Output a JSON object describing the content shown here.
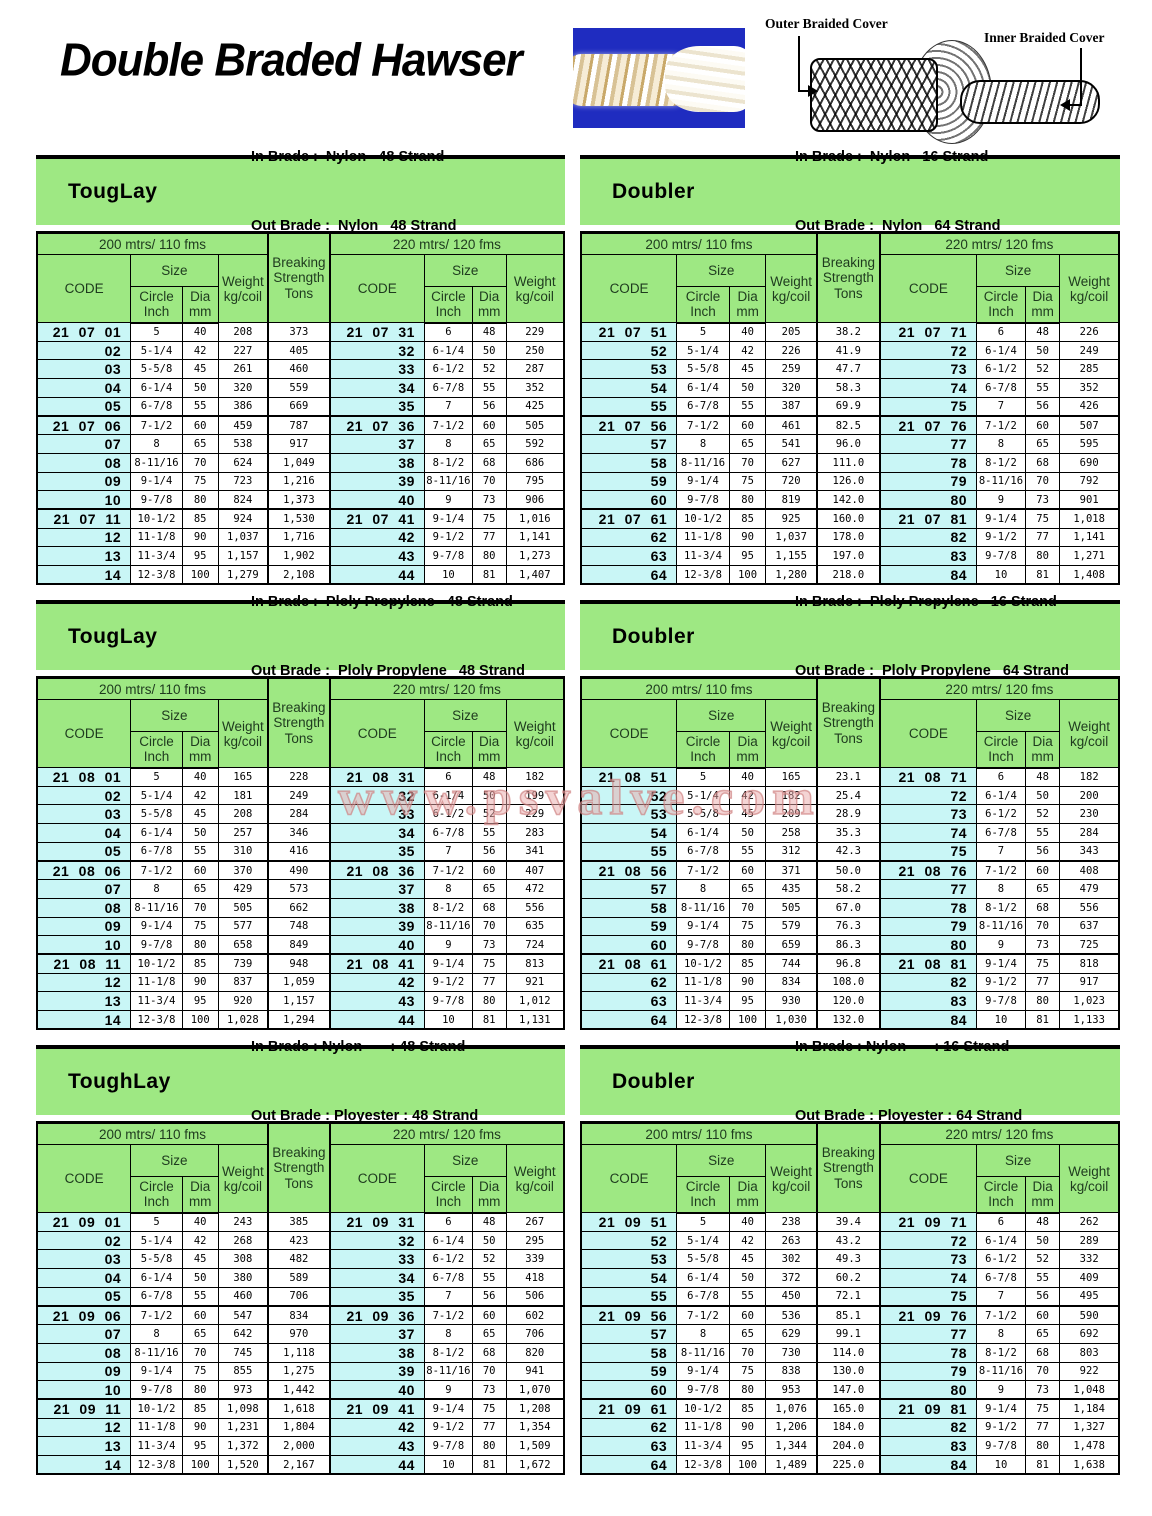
{
  "page": {
    "title": "Double Braded Hawser",
    "watermark": "www.psvalve.com"
  },
  "diagram": {
    "outer_label": "Outer Braided Cover",
    "inner_label": "Inner Braided Cover"
  },
  "colors": {
    "green": "#9ee883",
    "cyan": "#c9f6f6",
    "photo_blue": "#1f2cc0",
    "watermark_pink": "#e9aaaa"
  },
  "table_header": {
    "left_span": "200 mtrs/ 110 fms",
    "right_span": "220 mtrs/ 120 fms",
    "code": "CODE",
    "size": "Size",
    "circle": [
      "Circle",
      "Inch"
    ],
    "dia": [
      "Dia",
      "mm"
    ],
    "weight": [
      "Weight",
      "kg/coil"
    ],
    "breaking": [
      "Breaking",
      "Strength",
      "Tons"
    ]
  },
  "tables": [
    {
      "title": "TougLay",
      "in_line": "In Brade :  Nylon   48 Strand",
      "out_line": "Out Brade :  Nylon   48 Strand",
      "rows": [
        [
          "21 07 01",
          "5",
          "40",
          "208",
          "373",
          "21 07 31",
          "6",
          "48",
          "229"
        ],
        [
          "02",
          "5-1/4",
          "42",
          "227",
          "405",
          "32",
          "6-1/4",
          "50",
          "250"
        ],
        [
          "03",
          "5-5/8",
          "45",
          "261",
          "460",
          "33",
          "6-1/2",
          "52",
          "287"
        ],
        [
          "04",
          "6-1/4",
          "50",
          "320",
          "559",
          "34",
          "6-7/8",
          "55",
          "352"
        ],
        [
          "05",
          "6-7/8",
          "55",
          "386",
          "669",
          "35",
          "7",
          "56",
          "425"
        ],
        [
          "21 07 06",
          "7-1/2",
          "60",
          "459",
          "787",
          "21 07 36",
          "7-1/2",
          "60",
          "505"
        ],
        [
          "07",
          "8",
          "65",
          "538",
          "917",
          "37",
          "8",
          "65",
          "592"
        ],
        [
          "08",
          "8-11/16",
          "70",
          "624",
          "1,049",
          "38",
          "8-1/2",
          "68",
          "686"
        ],
        [
          "09",
          "9-1/4",
          "75",
          "723",
          "1,216",
          "39",
          "8-11/16",
          "70",
          "795"
        ],
        [
          "10",
          "9-7/8",
          "80",
          "824",
          "1,373",
          "40",
          "9",
          "73",
          "906"
        ],
        [
          "21 07 11",
          "10-1/2",
          "85",
          "924",
          "1,530",
          "21 07 41",
          "9-1/4",
          "75",
          "1,016"
        ],
        [
          "12",
          "11-1/8",
          "90",
          "1,037",
          "1,716",
          "42",
          "9-1/2",
          "77",
          "1,141"
        ],
        [
          "13",
          "11-3/4",
          "95",
          "1,157",
          "1,902",
          "43",
          "9-7/8",
          "80",
          "1,273"
        ],
        [
          "14",
          "12-3/8",
          "100",
          "1,279",
          "2,108",
          "44",
          "10",
          "81",
          "1,407"
        ]
      ]
    },
    {
      "title": "Doubler",
      "in_line": "In Brade :  Nylon   16 Strand",
      "out_line": "Out Brade :  Nylon   64 Strand",
      "rows": [
        [
          "21 07 51",
          "5",
          "40",
          "205",
          "38.2",
          "21 07 71",
          "6",
          "48",
          "226"
        ],
        [
          "52",
          "5-1/4",
          "42",
          "226",
          "41.9",
          "72",
          "6-1/4",
          "50",
          "249"
        ],
        [
          "53",
          "5-5/8",
          "45",
          "259",
          "47.7",
          "73",
          "6-1/2",
          "52",
          "285"
        ],
        [
          "54",
          "6-1/4",
          "50",
          "320",
          "58.3",
          "74",
          "6-7/8",
          "55",
          "352"
        ],
        [
          "55",
          "6-7/8",
          "55",
          "387",
          "69.9",
          "75",
          "7",
          "56",
          "426"
        ],
        [
          "21 07 56",
          "7-1/2",
          "60",
          "461",
          "82.5",
          "21 07 76",
          "7-1/2",
          "60",
          "507"
        ],
        [
          "57",
          "8",
          "65",
          "541",
          "96.0",
          "77",
          "8",
          "65",
          "595"
        ],
        [
          "58",
          "8-11/16",
          "70",
          "627",
          "111.0",
          "78",
          "8-1/2",
          "68",
          "690"
        ],
        [
          "59",
          "9-1/4",
          "75",
          "720",
          "126.0",
          "79",
          "8-11/16",
          "70",
          "792"
        ],
        [
          "60",
          "9-7/8",
          "80",
          "819",
          "142.0",
          "80",
          "9",
          "73",
          "901"
        ],
        [
          "21 07 61",
          "10-1/2",
          "85",
          "925",
          "160.0",
          "21 07 81",
          "9-1/4",
          "75",
          "1,018"
        ],
        [
          "62",
          "11-1/8",
          "90",
          "1,037",
          "178.0",
          "82",
          "9-1/2",
          "77",
          "1,141"
        ],
        [
          "63",
          "11-3/4",
          "95",
          "1,155",
          "197.0",
          "83",
          "9-7/8",
          "80",
          "1,271"
        ],
        [
          "64",
          "12-3/8",
          "100",
          "1,280",
          "218.0",
          "84",
          "10",
          "81",
          "1,408"
        ]
      ]
    },
    {
      "title": "TougLay",
      "in_line": "In Brade :  Ploly Propylene   48 Strand",
      "out_line": "Out Brade :  Ploly Propylene   48 Strand",
      "rows": [
        [
          "21 08 01",
          "5",
          "40",
          "165",
          "228",
          "21 08 31",
          "6",
          "48",
          "182"
        ],
        [
          "02",
          "5-1/4",
          "42",
          "181",
          "249",
          "32",
          "6-1/4",
          "50",
          "199"
        ],
        [
          "03",
          "5-5/8",
          "45",
          "208",
          "284",
          "33",
          "6-1/2",
          "52",
          "229"
        ],
        [
          "04",
          "6-1/4",
          "50",
          "257",
          "346",
          "34",
          "6-7/8",
          "55",
          "283"
        ],
        [
          "05",
          "6-7/8",
          "55",
          "310",
          "416",
          "35",
          "7",
          "56",
          "341"
        ],
        [
          "21 08 06",
          "7-1/2",
          "60",
          "370",
          "490",
          "21 08 36",
          "7-1/2",
          "60",
          "407"
        ],
        [
          "07",
          "8",
          "65",
          "429",
          "573",
          "37",
          "8",
          "65",
          "472"
        ],
        [
          "08",
          "8-11/16",
          "70",
          "505",
          "662",
          "38",
          "8-1/2",
          "68",
          "556"
        ],
        [
          "09",
          "9-1/4",
          "75",
          "577",
          "748",
          "39",
          "8-11/16",
          "70",
          "635"
        ],
        [
          "10",
          "9-7/8",
          "80",
          "658",
          "849",
          "40",
          "9",
          "73",
          "724"
        ],
        [
          "21 08 11",
          "10-1/2",
          "85",
          "739",
          "948",
          "21 08 41",
          "9-1/4",
          "75",
          "813"
        ],
        [
          "12",
          "11-1/8",
          "90",
          "837",
          "1,059",
          "42",
          "9-1/2",
          "77",
          "921"
        ],
        [
          "13",
          "11-3/4",
          "95",
          "920",
          "1,157",
          "43",
          "9-7/8",
          "80",
          "1,012"
        ],
        [
          "14",
          "12-3/8",
          "100",
          "1,028",
          "1,294",
          "44",
          "10",
          "81",
          "1,131"
        ]
      ]
    },
    {
      "title": "Doubler",
      "in_line": "In Brade :  Ploly Propylene   16 Strand",
      "out_line": "Out Brade :  Ploly Propylene   64 Strand",
      "rows": [
        [
          "21 08 51",
          "5",
          "40",
          "165",
          "23.1",
          "21 08 71",
          "6",
          "48",
          "182"
        ],
        [
          "52",
          "5-1/4",
          "42",
          "182",
          "25.4",
          "72",
          "6-1/4",
          "50",
          "200"
        ],
        [
          "53",
          "5-5/8",
          "45",
          "209",
          "28.9",
          "73",
          "6-1/2",
          "52",
          "230"
        ],
        [
          "54",
          "6-1/4",
          "50",
          "258",
          "35.3",
          "74",
          "6-7/8",
          "55",
          "284"
        ],
        [
          "55",
          "6-7/8",
          "55",
          "312",
          "42.3",
          "75",
          "7",
          "56",
          "343"
        ],
        [
          "21 08 56",
          "7-1/2",
          "60",
          "371",
          "50.0",
          "21 08 76",
          "7-1/2",
          "60",
          "408"
        ],
        [
          "57",
          "8",
          "65",
          "435",
          "58.2",
          "77",
          "8",
          "65",
          "479"
        ],
        [
          "58",
          "8-11/16",
          "70",
          "505",
          "67.0",
          "78",
          "8-1/2",
          "68",
          "556"
        ],
        [
          "59",
          "9-1/4",
          "75",
          "579",
          "76.3",
          "79",
          "8-11/16",
          "70",
          "637"
        ],
        [
          "60",
          "9-7/8",
          "80",
          "659",
          "86.3",
          "80",
          "9",
          "73",
          "725"
        ],
        [
          "21 08 61",
          "10-1/2",
          "85",
          "744",
          "96.8",
          "21 08 81",
          "9-1/4",
          "75",
          "818"
        ],
        [
          "62",
          "11-1/8",
          "90",
          "834",
          "108.0",
          "82",
          "9-1/2",
          "77",
          "917"
        ],
        [
          "63",
          "11-3/4",
          "95",
          "930",
          "120.0",
          "83",
          "9-7/8",
          "80",
          "1,023"
        ],
        [
          "64",
          "12-3/8",
          "100",
          "1,030",
          "132.0",
          "84",
          "10",
          "81",
          "1,133"
        ]
      ]
    },
    {
      "title": "ToughLay",
      "in_line": "In Brade : Nylon       : 48 Strand",
      "out_line": "Out Brade : Ployester : 48 Strand",
      "rows": [
        [
          "21 09 01",
          "5",
          "40",
          "243",
          "385",
          "21 09 31",
          "6",
          "48",
          "267"
        ],
        [
          "02",
          "5-1/4",
          "42",
          "268",
          "423",
          "32",
          "6-1/4",
          "50",
          "295"
        ],
        [
          "03",
          "5-5/8",
          "45",
          "308",
          "482",
          "33",
          "6-1/2",
          "52",
          "339"
        ],
        [
          "04",
          "6-1/4",
          "50",
          "380",
          "589",
          "34",
          "6-7/8",
          "55",
          "418"
        ],
        [
          "05",
          "6-7/8",
          "55",
          "460",
          "706",
          "35",
          "7",
          "56",
          "506"
        ],
        [
          "21 09 06",
          "7-1/2",
          "60",
          "547",
          "834",
          "21 09 36",
          "7-1/2",
          "60",
          "602"
        ],
        [
          "07",
          "8",
          "65",
          "642",
          "970",
          "37",
          "8",
          "65",
          "706"
        ],
        [
          "08",
          "8-11/16",
          "70",
          "745",
          "1,118",
          "38",
          "8-1/2",
          "68",
          "820"
        ],
        [
          "09",
          "9-1/4",
          "75",
          "855",
          "1,275",
          "39",
          "8-11/16",
          "70",
          "941"
        ],
        [
          "10",
          "9-7/8",
          "80",
          "973",
          "1,442",
          "40",
          "9",
          "73",
          "1,070"
        ],
        [
          "21 09 11",
          "10-1/2",
          "85",
          "1,098",
          "1,618",
          "21 09 41",
          "9-1/4",
          "75",
          "1,208"
        ],
        [
          "12",
          "11-1/8",
          "90",
          "1,231",
          "1,804",
          "42",
          "9-1/2",
          "77",
          "1,354"
        ],
        [
          "13",
          "11-3/4",
          "95",
          "1,372",
          "2,000",
          "43",
          "9-7/8",
          "80",
          "1,509"
        ],
        [
          "14",
          "12-3/8",
          "100",
          "1,520",
          "2,167",
          "44",
          "10",
          "81",
          "1,672"
        ]
      ]
    },
    {
      "title": "Doubler",
      "in_line": "In Brade : Nylon       : 16 Strand",
      "out_line": "Out Brade : Ployester : 64 Strand",
      "rows": [
        [
          "21 09 51",
          "5",
          "40",
          "238",
          "39.4",
          "21 09 71",
          "6",
          "48",
          "262"
        ],
        [
          "52",
          "5-1/4",
          "42",
          "263",
          "43.2",
          "72",
          "6-1/4",
          "50",
          "289"
        ],
        [
          "53",
          "5-5/8",
          "45",
          "302",
          "49.3",
          "73",
          "6-1/2",
          "52",
          "332"
        ],
        [
          "54",
          "6-1/4",
          "50",
          "372",
          "60.2",
          "74",
          "6-7/8",
          "55",
          "409"
        ],
        [
          "55",
          "6-7/8",
          "55",
          "450",
          "72.1",
          "75",
          "7",
          "56",
          "495"
        ],
        [
          "21 09 56",
          "7-1/2",
          "60",
          "536",
          "85.1",
          "21 09 76",
          "7-1/2",
          "60",
          "590"
        ],
        [
          "57",
          "8",
          "65",
          "629",
          "99.1",
          "77",
          "8",
          "65",
          "692"
        ],
        [
          "58",
          "8-11/16",
          "70",
          "730",
          "114.0",
          "78",
          "8-1/2",
          "68",
          "803"
        ],
        [
          "59",
          "9-1/4",
          "75",
          "838",
          "130.0",
          "79",
          "8-11/16",
          "70",
          "922"
        ],
        [
          "60",
          "9-7/8",
          "80",
          "953",
          "147.0",
          "80",
          "9",
          "73",
          "1,048"
        ],
        [
          "21 09 61",
          "10-1/2",
          "85",
          "1,076",
          "165.0",
          "21 09 81",
          "9-1/4",
          "75",
          "1,184"
        ],
        [
          "62",
          "11-1/8",
          "90",
          "1,206",
          "184.0",
          "82",
          "9-1/2",
          "77",
          "1,327"
        ],
        [
          "63",
          "11-3/4",
          "95",
          "1,344",
          "204.0",
          "83",
          "9-7/8",
          "80",
          "1,478"
        ],
        [
          "64",
          "12-3/8",
          "100",
          "1,489",
          "225.0",
          "84",
          "10",
          "81",
          "1,638"
        ]
      ]
    }
  ]
}
